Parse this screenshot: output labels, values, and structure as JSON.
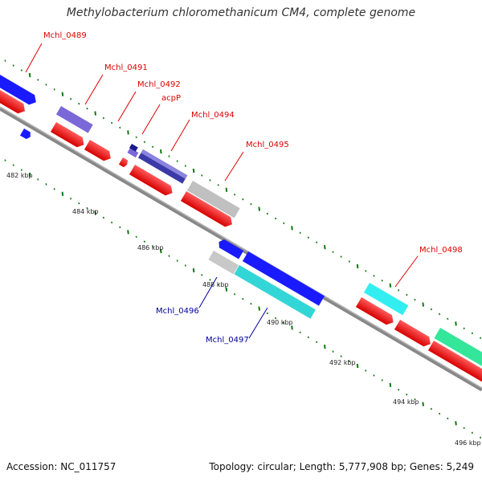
{
  "title": "Methylobacterium chloromethanicum CM4, complete genome",
  "footer": {
    "accession": "Accession: NC_011757",
    "summary": "Topology: circular; Length: 5,777,908 bp; Genes: 5,249"
  },
  "kbp_labels": [
    "482 kbp",
    "484 kbp",
    "486 kbp",
    "488 kbp",
    "490 kbp",
    "492 kbp",
    "494 kbp",
    "496 kbp"
  ],
  "gene_labels": [
    {
      "id": "Mchl_0489",
      "text": "Mchl_0489",
      "color": "#dd0000"
    },
    {
      "id": "Mchl_0491",
      "text": "Mchl_0491",
      "color": "#dd0000"
    },
    {
      "id": "Mchl_0492",
      "text": "Mchl_0492",
      "color": "#dd0000"
    },
    {
      "id": "acpP",
      "text": "acpP",
      "color": "#dd0000"
    },
    {
      "id": "Mchl_0494",
      "text": "Mchl_0494",
      "color": "#dd0000"
    },
    {
      "id": "Mchl_0495",
      "text": "Mchl_0495",
      "color": "#dd0000"
    },
    {
      "id": "Mchl_0498",
      "text": "Mchl_0498",
      "color": "#dd0000"
    },
    {
      "id": "Mchl_0496",
      "text": "Mchl_0496",
      "color": "#000099"
    },
    {
      "id": "Mchl_0497",
      "text": "Mchl_0497",
      "color": "#000099"
    }
  ],
  "colors": {
    "backbone": "#888888",
    "cds_red": "#ff0000",
    "gene_blue": "#1a1aff",
    "gene_purple": "#7b68d8",
    "gene_navy": "#1a1a8c",
    "gene_gray": "#c0c0c0",
    "gene_cyan": "#33d6d6",
    "gene_green": "#33e699",
    "tick_green": "#117711"
  }
}
